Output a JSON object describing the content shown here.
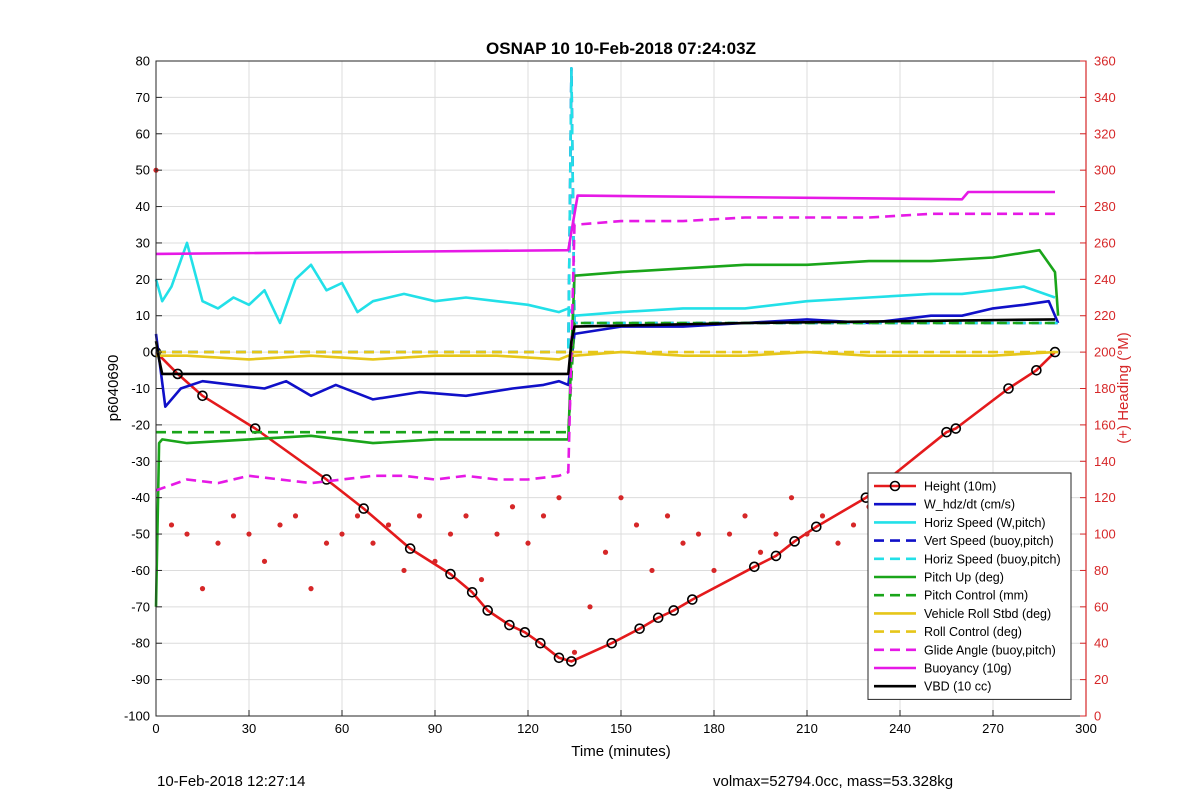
{
  "chart_data": {
    "type": "line",
    "title": "OSNAP 10 10-Feb-2018 07:24:03Z",
    "xlabel": "Time (minutes)",
    "ylabel": "p6040690",
    "y2label": "(+) Heading (°M)",
    "xlim": [
      0,
      300
    ],
    "ylim": [
      -100,
      80
    ],
    "y2lim": [
      0,
      360
    ],
    "xticks": [
      "0",
      "30",
      "60",
      "90",
      "120",
      "150",
      "180",
      "210",
      "240",
      "270",
      "300"
    ],
    "yticks": [
      "-100",
      "-90",
      "-80",
      "-70",
      "-60",
      "-50",
      "-40",
      "-30",
      "-20",
      "-10",
      "0",
      "10",
      "20",
      "30",
      "40",
      "50",
      "60",
      "70",
      "80"
    ],
    "y2ticks": [
      "0",
      "20",
      "40",
      "60",
      "80",
      "100",
      "120",
      "140",
      "160",
      "180",
      "200",
      "220",
      "240",
      "260",
      "280",
      "300",
      "320",
      "340",
      "360"
    ],
    "grid": true,
    "legend_position": "bottom-right",
    "legend": [
      {
        "label": "Height (10m)",
        "color": "#e41a1c",
        "style": "solid",
        "marker": true
      },
      {
        "label": "W_hdz/dt (cm/s)",
        "color": "#1010c8",
        "style": "solid"
      },
      {
        "label": "Horiz Speed (W,pitch)",
        "color": "#22e0e8",
        "style": "solid"
      },
      {
        "label": "Vert Speed (buoy,pitch)",
        "color": "#1010c8",
        "style": "dashed"
      },
      {
        "label": "Horiz Speed (buoy,pitch)",
        "color": "#22e0e8",
        "style": "dashed"
      },
      {
        "label": "Pitch Up (deg)",
        "color": "#1aa51a",
        "style": "solid"
      },
      {
        "label": "Pitch Control (mm)",
        "color": "#1aa51a",
        "style": "dashed"
      },
      {
        "label": "Vehicle Roll Stbd (deg)",
        "color": "#e6c619",
        "style": "solid"
      },
      {
        "label": "Roll Control (deg)",
        "color": "#e6c619",
        "style": "dashed"
      },
      {
        "label": "Glide Angle (buoy,pitch)",
        "color": "#e619e6",
        "style": "dashed"
      },
      {
        "label": "Buoyancy (10g)",
        "color": "#e619e6",
        "style": "solid"
      },
      {
        "label": "VBD (10 cc)",
        "color": "#000000",
        "style": "solid"
      }
    ],
    "series": [
      {
        "name": "Height (10m)",
        "x": [
          0,
          7,
          15,
          32,
          55,
          67,
          82,
          95,
          102,
          107,
          114,
          119,
          124,
          130,
          134,
          147,
          156,
          162,
          167,
          173,
          193,
          200,
          206,
          213,
          229,
          236,
          255,
          258,
          275,
          284,
          290
        ],
        "y": [
          0,
          -6,
          -12,
          -21,
          -35,
          -43,
          -54,
          -61,
          -66,
          -71,
          -75,
          -77,
          -80,
          -84,
          -85,
          -80,
          -76,
          -73,
          -71,
          -68,
          -59,
          -56,
          -52,
          -48,
          -40,
          -35,
          -22,
          -21,
          -10,
          -5,
          0
        ]
      },
      {
        "name": "W_hdz/dt (cm/s)",
        "x": [
          0,
          3,
          8,
          15,
          25,
          35,
          42,
          50,
          58,
          70,
          85,
          100,
          115,
          125,
          130,
          133,
          135,
          150,
          170,
          190,
          210,
          230,
          250,
          260,
          270,
          280,
          288,
          291
        ],
        "y": [
          5,
          -15,
          -10,
          -8,
          -9,
          -10,
          -8,
          -12,
          -9,
          -13,
          -11,
          -12,
          -10,
          -9,
          -8,
          -9,
          5,
          7,
          7,
          8,
          9,
          8,
          10,
          10,
          12,
          13,
          14,
          8
        ]
      },
      {
        "name": "Horiz Speed (W,pitch)",
        "x": [
          0,
          2,
          5,
          10,
          15,
          20,
          25,
          30,
          35,
          40,
          45,
          50,
          55,
          60,
          65,
          70,
          80,
          90,
          100,
          110,
          120,
          130,
          133,
          135,
          150,
          170,
          190,
          210,
          230,
          250,
          260,
          270,
          280,
          290
        ],
        "y": [
          20,
          14,
          18,
          30,
          14,
          12,
          15,
          13,
          17,
          8,
          20,
          24,
          17,
          19,
          11,
          14,
          16,
          14,
          15,
          14,
          13,
          11,
          12,
          10,
          11,
          12,
          12,
          14,
          15,
          16,
          16,
          17,
          18,
          15
        ]
      },
      {
        "name": "Vert Speed (buoy,pitch)",
        "x": [
          0,
          133,
          134,
          135,
          291
        ],
        "y": [
          0,
          0,
          78,
          8,
          8
        ]
      },
      {
        "name": "Horiz Speed (buoy,pitch)",
        "x": [
          0,
          133,
          134,
          135,
          291
        ],
        "y": [
          0,
          0,
          78,
          8,
          8
        ]
      },
      {
        "name": "Pitch Up (deg)",
        "x": [
          0,
          1,
          2,
          10,
          30,
          50,
          70,
          90,
          110,
          133,
          134,
          135,
          150,
          170,
          190,
          210,
          230,
          250,
          270,
          285,
          290,
          291
        ],
        "y": [
          -70,
          -25,
          -24,
          -25,
          -24,
          -23,
          -25,
          -24,
          -24,
          -24,
          0,
          21,
          22,
          23,
          24,
          24,
          25,
          25,
          26,
          28,
          22,
          10
        ]
      },
      {
        "name": "Pitch Control (mm)",
        "x": [
          0,
          133,
          135,
          291
        ],
        "y": [
          -22,
          -22,
          8,
          8
        ]
      },
      {
        "name": "Vehicle Roll Stbd (deg)",
        "x": [
          0,
          10,
          30,
          50,
          70,
          90,
          110,
          130,
          133,
          135,
          150,
          170,
          190,
          210,
          230,
          250,
          270,
          290
        ],
        "y": [
          -1,
          -1,
          -2,
          -1,
          -2,
          -1,
          -1,
          -2,
          -1,
          -1,
          0,
          -1,
          -1,
          0,
          -1,
          -1,
          -1,
          0
        ]
      },
      {
        "name": "Roll Control (deg)",
        "x": [
          0,
          291
        ],
        "y": [
          0,
          0
        ]
      },
      {
        "name": "Glide Angle (buoy,pitch)",
        "x": [
          0,
          10,
          20,
          30,
          40,
          50,
          60,
          70,
          80,
          90,
          100,
          110,
          120,
          130,
          133,
          135,
          150,
          170,
          190,
          210,
          230,
          250,
          270,
          290
        ],
        "y": [
          -38,
          -35,
          -36,
          -34,
          -35,
          -36,
          -35,
          -34,
          -34,
          -35,
          -34,
          -35,
          -35,
          -34,
          -33,
          35,
          36,
          36,
          37,
          37,
          37,
          38,
          38,
          38
        ]
      },
      {
        "name": "Buoyancy (10g)",
        "x": [
          0,
          133,
          136,
          260,
          262,
          290
        ],
        "y": [
          27,
          28,
          43,
          42,
          44,
          44
        ]
      },
      {
        "name": "VBD (10 cc)",
        "x": [
          0,
          1,
          2,
          130,
          133,
          134,
          135,
          190,
          290
        ],
        "y": [
          3,
          -2,
          -6,
          -6,
          -6,
          3,
          7,
          8,
          9
        ]
      },
      {
        "name": "Heading (°M)",
        "axis": "right",
        "type": "scatter",
        "x": [
          0,
          5,
          10,
          15,
          20,
          25,
          30,
          35,
          40,
          45,
          50,
          55,
          60,
          65,
          70,
          75,
          80,
          85,
          90,
          95,
          100,
          105,
          110,
          115,
          120,
          125,
          130,
          135,
          140,
          145,
          150,
          155,
          160,
          165,
          170,
          175,
          180,
          185,
          190,
          195,
          200,
          205,
          210,
          215,
          220,
          225,
          230,
          235,
          240,
          245,
          250,
          255,
          260,
          265,
          270,
          275,
          280,
          285,
          290
        ],
        "y": [
          300,
          105,
          100,
          70,
          95,
          110,
          100,
          85,
          105,
          110,
          70,
          95,
          100,
          110,
          95,
          105,
          80,
          110,
          85,
          100,
          110,
          75,
          100,
          115,
          95,
          110,
          120,
          35,
          60,
          90,
          120,
          105,
          80,
          110,
          95,
          100,
          80,
          100,
          110,
          90,
          100,
          120,
          100,
          110,
          95,
          105,
          115,
          120,
          110,
          95,
          105,
          115,
          100,
          110,
          90,
          105,
          115,
          100,
          120
        ]
      }
    ]
  },
  "footer": {
    "timestamp": "10-Feb-2018 12:27:14",
    "summary": "volmax=52794.0cc, mass=53.328kg"
  }
}
